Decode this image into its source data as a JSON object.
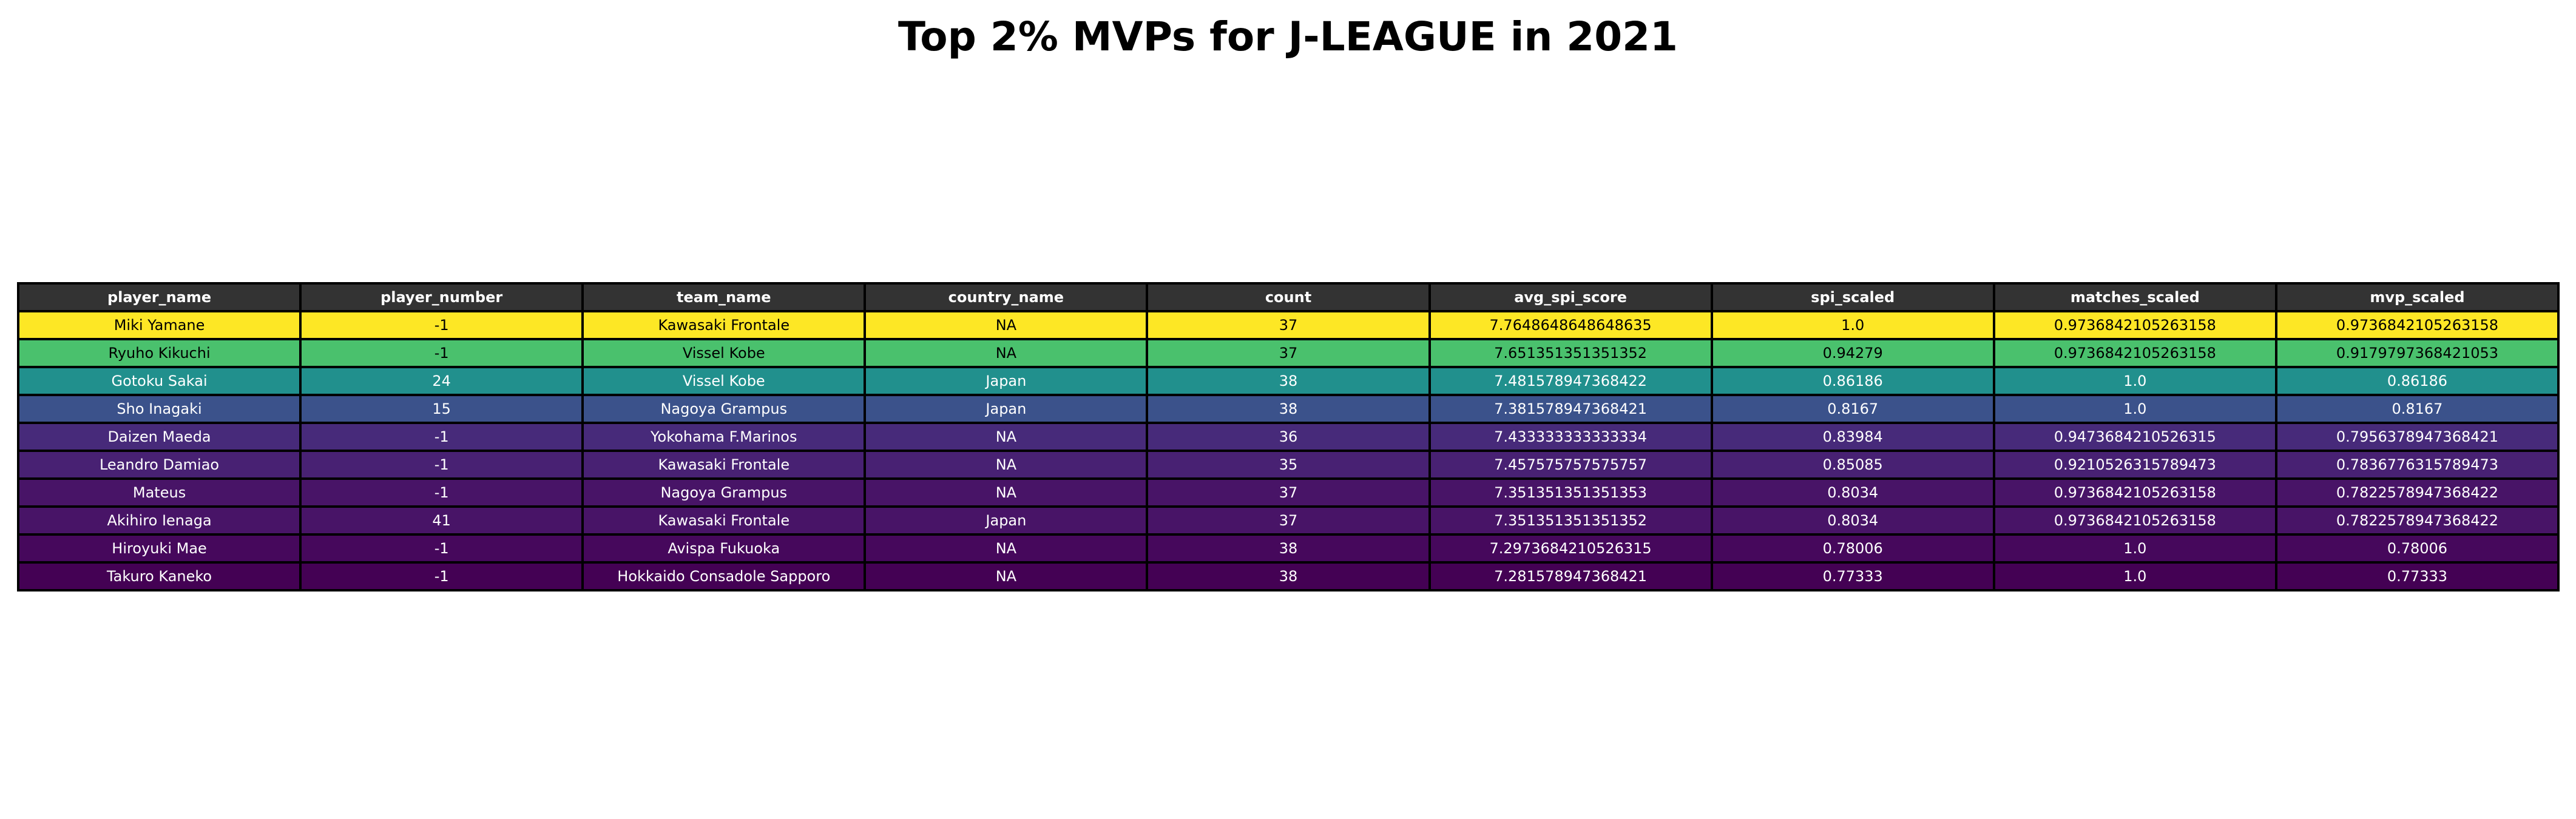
{
  "chart_data": {
    "type": "table",
    "title": "Top 2% MVPs for J-LEAGUE in 2021",
    "header_color": "#333333",
    "columns": [
      "player_name",
      "player_number",
      "team_name",
      "country_name",
      "count",
      "avg_spi_score",
      "spi_scaled",
      "matches_scaled",
      "mvp_scaled"
    ],
    "rows": [
      {
        "cells": [
          "Miki Yamane",
          "-1",
          "Kawasaki Frontale",
          "NA",
          "37",
          "7.7648648648648635",
          "1.0",
          "0.9736842105263158",
          "0.9736842105263158"
        ],
        "color": "#fde725",
        "text_color": "#000000"
      },
      {
        "cells": [
          "Ryuho Kikuchi",
          "-1",
          "Vissel Kobe",
          "NA",
          "37",
          "7.651351351351352",
          "0.94279",
          "0.9736842105263158",
          "0.9179797368421053"
        ],
        "color": "#4ac16d",
        "text_color": "#000000"
      },
      {
        "cells": [
          "Gotoku Sakai",
          "24",
          "Vissel Kobe",
          "Japan",
          "38",
          "7.481578947368422",
          "0.86186",
          "1.0",
          "0.86186"
        ],
        "color": "#21908d",
        "text_color": "#ffffff"
      },
      {
        "cells": [
          "Sho Inagaki",
          "15",
          "Nagoya Grampus",
          "Japan",
          "38",
          "7.381578947368421",
          "0.8167",
          "1.0",
          "0.8167"
        ],
        "color": "#3b528b",
        "text_color": "#ffffff"
      },
      {
        "cells": [
          "Daizen Maeda",
          "-1",
          "Yokohama F.Marinos",
          "NA",
          "36",
          "7.433333333333334",
          "0.83984",
          "0.9473684210526315",
          "0.7956378947368421"
        ],
        "color": "#472a7a",
        "text_color": "#ffffff"
      },
      {
        "cells": [
          "Leandro Damiao",
          "-1",
          "Kawasaki Frontale",
          "NA",
          "35",
          "7.457575757575757",
          "0.85085",
          "0.9210526315789473",
          "0.7836776315789473"
        ],
        "color": "#482173",
        "text_color": "#ffffff"
      },
      {
        "cells": [
          "Mateus",
          "-1",
          "Nagoya Grampus",
          "NA",
          "37",
          "7.351351351351353",
          "0.8034",
          "0.9736842105263158",
          "0.7822578947368422"
        ],
        "color": "#481467",
        "text_color": "#ffffff"
      },
      {
        "cells": [
          "Akihiro Ienaga",
          "41",
          "Kawasaki Frontale",
          "Japan",
          "37",
          "7.351351351351352",
          "0.8034",
          "0.9736842105263158",
          "0.7822578947368422"
        ],
        "color": "#481467",
        "text_color": "#ffffff"
      },
      {
        "cells": [
          "Hiroyuki Mae",
          "-1",
          "Avispa Fukuoka",
          "NA",
          "38",
          "7.2973684210526315",
          "0.78006",
          "1.0",
          "0.78006"
        ],
        "color": "#46085c",
        "text_color": "#ffffff"
      },
      {
        "cells": [
          "Takuro Kaneko",
          "-1",
          "Hokkaido Consadole Sapporo",
          "NA",
          "38",
          "7.281578947368421",
          "0.77333",
          "1.0",
          "0.77333"
        ],
        "color": "#440154",
        "text_color": "#ffffff"
      }
    ]
  }
}
